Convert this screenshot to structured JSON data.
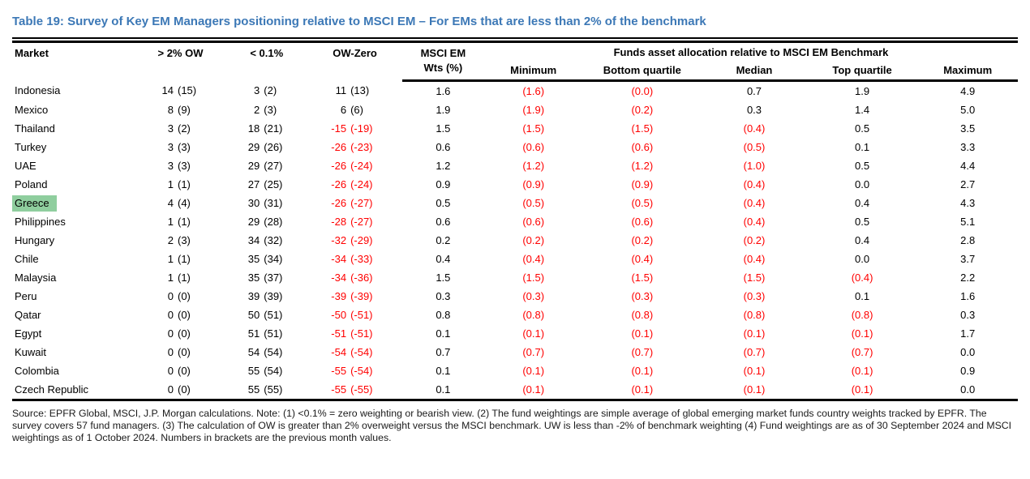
{
  "title": "Table 19: Survey of Key EM Managers positioning relative to MSCI EM – For EMs that are less than 2% of the benchmark",
  "colors": {
    "title_blue": "#3C78B6",
    "negative_red": "#FF0000",
    "highlight_green": "#8FCE9E"
  },
  "table": {
    "header": {
      "market": "Market",
      "gt2_ow": "> 2% OW",
      "lt_01": "< 0.1%",
      "ow_zero": "OW-Zero",
      "msci_line1": "MSCI EM",
      "msci_line2": "Wts (%)",
      "funds_span": "Funds asset allocation relative to MSCI EM Benchmark",
      "minimum": "Minimum",
      "bottom_quartile": "Bottom quartile",
      "median": "Median",
      "top_quartile": "Top quartile",
      "maximum": "Maximum"
    },
    "rows": [
      {
        "market": "Indonesia",
        "highlight": false,
        "gt2ow": [
          "14",
          "(15)"
        ],
        "lt01": [
          "3",
          "(2)"
        ],
        "owzero": [
          "11",
          "(13)"
        ],
        "wts": "1.6",
        "alloc": [
          "(1.6)",
          "(0.0)",
          "0.7",
          "1.9",
          "4.9"
        ]
      },
      {
        "market": "Mexico",
        "highlight": false,
        "gt2ow": [
          "8",
          "(9)"
        ],
        "lt01": [
          "2",
          "(3)"
        ],
        "owzero": [
          "6",
          "(6)"
        ],
        "wts": "1.9",
        "alloc": [
          "(1.9)",
          "(0.2)",
          "0.3",
          "1.4",
          "5.0"
        ]
      },
      {
        "market": "Thailand",
        "highlight": false,
        "gt2ow": [
          "3",
          "(2)"
        ],
        "lt01": [
          "18",
          "(21)"
        ],
        "owzero": [
          "-15",
          "(-19)"
        ],
        "wts": "1.5",
        "alloc": [
          "(1.5)",
          "(1.5)",
          "(0.4)",
          "0.5",
          "3.5"
        ]
      },
      {
        "market": "Turkey",
        "highlight": false,
        "gt2ow": [
          "3",
          "(3)"
        ],
        "lt01": [
          "29",
          "(26)"
        ],
        "owzero": [
          "-26",
          "(-23)"
        ],
        "wts": "0.6",
        "alloc": [
          "(0.6)",
          "(0.6)",
          "(0.5)",
          "0.1",
          "3.3"
        ]
      },
      {
        "market": "UAE",
        "highlight": false,
        "gt2ow": [
          "3",
          "(3)"
        ],
        "lt01": [
          "29",
          "(27)"
        ],
        "owzero": [
          "-26",
          "(-24)"
        ],
        "wts": "1.2",
        "alloc": [
          "(1.2)",
          "(1.2)",
          "(1.0)",
          "0.5",
          "4.4"
        ]
      },
      {
        "market": "Poland",
        "highlight": false,
        "gt2ow": [
          "1",
          "(1)"
        ],
        "lt01": [
          "27",
          "(25)"
        ],
        "owzero": [
          "-26",
          "(-24)"
        ],
        "wts": "0.9",
        "alloc": [
          "(0.9)",
          "(0.9)",
          "(0.4)",
          "0.0",
          "2.7"
        ]
      },
      {
        "market": "Greece",
        "highlight": true,
        "gt2ow": [
          "4",
          "(4)"
        ],
        "lt01": [
          "30",
          "(31)"
        ],
        "owzero": [
          "-26",
          "(-27)"
        ],
        "wts": "0.5",
        "alloc": [
          "(0.5)",
          "(0.5)",
          "(0.4)",
          "0.4",
          "4.3"
        ]
      },
      {
        "market": "Philippines",
        "highlight": false,
        "gt2ow": [
          "1",
          "(1)"
        ],
        "lt01": [
          "29",
          "(28)"
        ],
        "owzero": [
          "-28",
          "(-27)"
        ],
        "wts": "0.6",
        "alloc": [
          "(0.6)",
          "(0.6)",
          "(0.4)",
          "0.5",
          "5.1"
        ]
      },
      {
        "market": "Hungary",
        "highlight": false,
        "gt2ow": [
          "2",
          "(3)"
        ],
        "lt01": [
          "34",
          "(32)"
        ],
        "owzero": [
          "-32",
          "(-29)"
        ],
        "wts": "0.2",
        "alloc": [
          "(0.2)",
          "(0.2)",
          "(0.2)",
          "0.4",
          "2.8"
        ]
      },
      {
        "market": "Chile",
        "highlight": false,
        "gt2ow": [
          "1",
          "(1)"
        ],
        "lt01": [
          "35",
          "(34)"
        ],
        "owzero": [
          "-34",
          "(-33)"
        ],
        "wts": "0.4",
        "alloc": [
          "(0.4)",
          "(0.4)",
          "(0.4)",
          "0.0",
          "3.7"
        ]
      },
      {
        "market": "Malaysia",
        "highlight": false,
        "gt2ow": [
          "1",
          "(1)"
        ],
        "lt01": [
          "35",
          "(37)"
        ],
        "owzero": [
          "-34",
          "(-36)"
        ],
        "wts": "1.5",
        "alloc": [
          "(1.5)",
          "(1.5)",
          "(1.5)",
          "(0.4)",
          "2.2"
        ]
      },
      {
        "market": "Peru",
        "highlight": false,
        "gt2ow": [
          "0",
          "(0)"
        ],
        "lt01": [
          "39",
          "(39)"
        ],
        "owzero": [
          "-39",
          "(-39)"
        ],
        "wts": "0.3",
        "alloc": [
          "(0.3)",
          "(0.3)",
          "(0.3)",
          "0.1",
          "1.6"
        ]
      },
      {
        "market": "Qatar",
        "highlight": false,
        "gt2ow": [
          "0",
          "(0)"
        ],
        "lt01": [
          "50",
          "(51)"
        ],
        "owzero": [
          "-50",
          "(-51)"
        ],
        "wts": "0.8",
        "alloc": [
          "(0.8)",
          "(0.8)",
          "(0.8)",
          "(0.8)",
          "0.3"
        ]
      },
      {
        "market": "Egypt",
        "highlight": false,
        "gt2ow": [
          "0",
          "(0)"
        ],
        "lt01": [
          "51",
          "(51)"
        ],
        "owzero": [
          "-51",
          "(-51)"
        ],
        "wts": "0.1",
        "alloc": [
          "(0.1)",
          "(0.1)",
          "(0.1)",
          "(0.1)",
          "1.7"
        ]
      },
      {
        "market": "Kuwait",
        "highlight": false,
        "gt2ow": [
          "0",
          "(0)"
        ],
        "lt01": [
          "54",
          "(54)"
        ],
        "owzero": [
          "-54",
          "(-54)"
        ],
        "wts": "0.7",
        "alloc": [
          "(0.7)",
          "(0.7)",
          "(0.7)",
          "(0.7)",
          "0.0"
        ]
      },
      {
        "market": "Colombia",
        "highlight": false,
        "gt2ow": [
          "0",
          "(0)"
        ],
        "lt01": [
          "55",
          "(54)"
        ],
        "owzero": [
          "-55",
          "(-54)"
        ],
        "wts": "0.1",
        "alloc": [
          "(0.1)",
          "(0.1)",
          "(0.1)",
          "(0.1)",
          "0.9"
        ]
      },
      {
        "market": "Czech Republic",
        "highlight": false,
        "gt2ow": [
          "0",
          "(0)"
        ],
        "lt01": [
          "55",
          "(55)"
        ],
        "owzero": [
          "-55",
          "(-55)"
        ],
        "wts": "0.1",
        "alloc": [
          "(0.1)",
          "(0.1)",
          "(0.1)",
          "(0.1)",
          "0.0"
        ]
      }
    ],
    "alloc_cell_names": [
      "cell-minimum",
      "cell-bottom-quartile",
      "cell-median",
      "cell-top-quartile",
      "cell-maximum"
    ]
  },
  "source_note": "Source: EPFR Global, MSCI, J.P. Morgan calculations. Note: (1) <0.1% = zero weighting or bearish view. (2) The fund weightings are simple average of global emerging market funds country weights tracked by EPFR.  The survey covers 57 fund managers. (3) The calculation of OW is greater than 2% overweight versus the MSCI benchmark. UW is less than -2% of benchmark weighting (4) Fund weightings are as of 30 September 2024 and MSCI weightings as of 1 October 2024. Numbers in brackets are the previous month values."
}
